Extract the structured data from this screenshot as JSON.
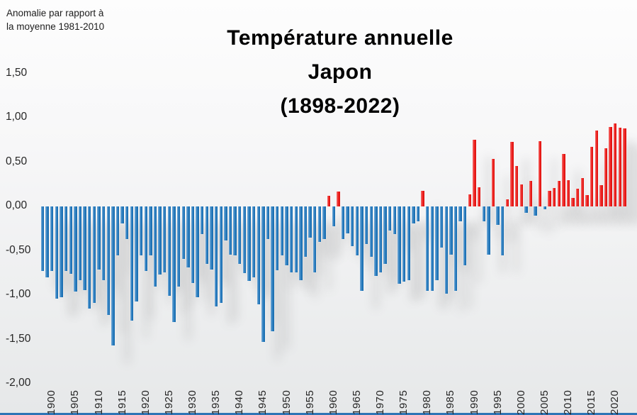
{
  "header": {
    "note_line1": "Anomalie par rapport à",
    "note_line2": "la moyenne 1981-2010",
    "title_line1": "Température annuelle",
    "title_line2": "Japon",
    "title_line3": "(1898-2022)"
  },
  "axes": {
    "y_ticks": [
      {
        "label": "1,50",
        "value": 1.5
      },
      {
        "label": "1,00",
        "value": 1.0
      },
      {
        "label": "0,50",
        "value": 0.5
      },
      {
        "label": "0,00",
        "value": 0.0
      },
      {
        "label": "-0,50",
        "value": -0.5
      },
      {
        "label": "-1,00",
        "value": -1.0
      },
      {
        "label": "-1,50",
        "value": -1.5
      },
      {
        "label": "-2,00",
        "value": -2.0
      }
    ],
    "x_ticks": [
      1900,
      1905,
      1910,
      1915,
      1920,
      1925,
      1930,
      1935,
      1940,
      1945,
      1950,
      1955,
      1960,
      1965,
      1970,
      1975,
      1980,
      1985,
      1990,
      1995,
      2000,
      2005,
      2010,
      2015,
      2020
    ]
  },
  "chart_data": {
    "type": "bar",
    "title": "Température annuelle Japon (1898-2022)",
    "ylabel": "Anomalie par rapport à la moyenne 1981-2010",
    "xlabel": "",
    "ylim": [
      -2.0,
      1.5
    ],
    "grid": false,
    "legend": "none",
    "colors": {
      "positive": "#ec1310",
      "negative": "#1b74bb"
    },
    "x_start": 1898,
    "x_end": 2022,
    "x": [
      1898,
      1899,
      1900,
      1901,
      1902,
      1903,
      1904,
      1905,
      1906,
      1907,
      1908,
      1909,
      1910,
      1911,
      1912,
      1913,
      1914,
      1915,
      1916,
      1917,
      1918,
      1919,
      1920,
      1921,
      1922,
      1923,
      1924,
      1925,
      1926,
      1927,
      1928,
      1929,
      1930,
      1931,
      1932,
      1933,
      1934,
      1935,
      1936,
      1937,
      1938,
      1939,
      1940,
      1941,
      1942,
      1943,
      1944,
      1945,
      1946,
      1947,
      1948,
      1949,
      1950,
      1951,
      1952,
      1953,
      1954,
      1955,
      1956,
      1957,
      1958,
      1959,
      1960,
      1961,
      1962,
      1963,
      1964,
      1965,
      1966,
      1967,
      1968,
      1969,
      1970,
      1971,
      1972,
      1973,
      1974,
      1975,
      1976,
      1977,
      1978,
      1979,
      1980,
      1981,
      1982,
      1983,
      1984,
      1985,
      1986,
      1987,
      1988,
      1989,
      1990,
      1991,
      1992,
      1993,
      1994,
      1995,
      1996,
      1997,
      1998,
      1999,
      2000,
      2001,
      2002,
      2003,
      2004,
      2005,
      2006,
      2007,
      2008,
      2009,
      2010,
      2011,
      2012,
      2013,
      2014,
      2015,
      2016,
      2017,
      2018,
      2019,
      2020,
      2021,
      2022
    ],
    "values": [
      -0.73,
      -0.8,
      -0.73,
      -1.04,
      -1.02,
      -0.73,
      -0.76,
      -0.96,
      -0.83,
      -0.94,
      -1.15,
      -1.09,
      -0.71,
      -0.83,
      -1.22,
      -1.57,
      -0.55,
      -0.19,
      -0.37,
      -1.29,
      -1.07,
      -0.55,
      -0.73,
      -0.55,
      -0.9,
      -0.77,
      -0.74,
      -1.01,
      -1.3,
      -0.9,
      -0.59,
      -0.69,
      -0.86,
      -1.02,
      -0.31,
      -0.65,
      -0.71,
      -1.13,
      -1.09,
      -0.38,
      -0.54,
      -0.55,
      -0.65,
      -0.75,
      -0.84,
      -0.8,
      -1.1,
      -1.53,
      -0.37,
      -1.41,
      -0.72,
      -0.55,
      -0.66,
      -0.74,
      -0.74,
      -0.83,
      -0.57,
      -0.35,
      -0.74,
      -0.4,
      -0.37,
      0.12,
      -0.22,
      0.17,
      -0.37,
      -0.3,
      -0.45,
      -0.55,
      -0.95,
      -0.42,
      -0.57,
      -0.78,
      -0.74,
      -0.65,
      -0.27,
      -0.31,
      -0.87,
      -0.85,
      -0.83,
      -0.19,
      -0.17,
      0.18,
      -0.95,
      -0.95,
      -0.83,
      -0.46,
      -0.98,
      -0.54,
      -0.95,
      -0.17,
      -0.66,
      0.14,
      0.75,
      0.22,
      -0.17,
      -0.54,
      0.54,
      -0.21,
      -0.55,
      0.08,
      0.73,
      0.46,
      0.25,
      -0.07,
      0.29,
      -0.1,
      0.74,
      -0.03,
      0.18,
      0.21,
      0.29,
      0.59,
      0.3,
      0.1,
      0.2,
      0.32,
      0.13,
      0.67,
      0.86,
      0.24,
      0.66,
      0.9,
      0.94,
      0.89,
      0.88
    ]
  }
}
